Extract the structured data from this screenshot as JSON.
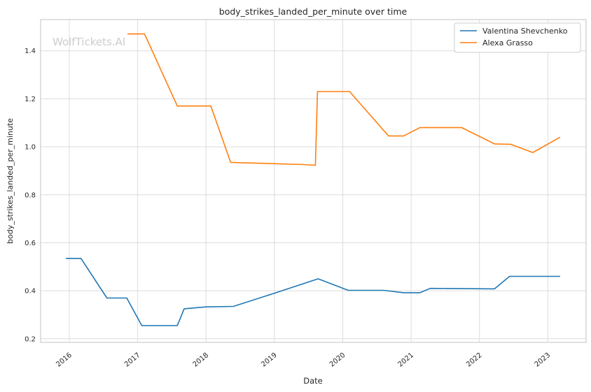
{
  "watermark": "WolfTickets.AI",
  "styles": {
    "background": "#ffffff",
    "grid_color": "#dcdcdc",
    "spine_color": "#cccccc",
    "text_color": "#262626",
    "watermark_color": "#cccccc",
    "legend_border_color": "#cccccc",
    "legend_background": "#ffffff"
  },
  "chart_data": {
    "type": "line",
    "title": "body_strikes_landed_per_minute over time",
    "xlabel": "Date",
    "ylabel": "body_strikes_landed_per_minute",
    "xlim": [
      2015.58,
      2023.56
    ],
    "ylim": [
      0.185,
      1.53
    ],
    "x_ticks": [
      2016,
      2017,
      2018,
      2019,
      2020,
      2021,
      2022,
      2023
    ],
    "y_ticks": [
      0.2,
      0.4,
      0.6,
      0.8,
      1.0,
      1.2,
      1.4
    ],
    "grid": true,
    "legend_position": "upper-right",
    "series": [
      {
        "name": "Valentina Shevchenko",
        "color": "#1f77b4",
        "points": [
          [
            2015.95,
            0.535
          ],
          [
            2016.17,
            0.535
          ],
          [
            2016.55,
            0.37
          ],
          [
            2016.84,
            0.37
          ],
          [
            2017.06,
            0.255
          ],
          [
            2017.58,
            0.255
          ],
          [
            2017.68,
            0.325
          ],
          [
            2018.0,
            0.333
          ],
          [
            2018.4,
            0.335
          ],
          [
            2019.0,
            0.39
          ],
          [
            2019.64,
            0.45
          ],
          [
            2020.08,
            0.402
          ],
          [
            2020.6,
            0.402
          ],
          [
            2020.89,
            0.392
          ],
          [
            2021.13,
            0.392
          ],
          [
            2021.28,
            0.41
          ],
          [
            2022.22,
            0.408
          ],
          [
            2022.44,
            0.46
          ],
          [
            2023.18,
            0.46
          ]
        ]
      },
      {
        "name": "Alexa Grasso",
        "color": "#ff7f0e",
        "points": [
          [
            2016.85,
            1.47
          ],
          [
            2017.1,
            1.47
          ],
          [
            2017.58,
            1.17
          ],
          [
            2018.07,
            1.17
          ],
          [
            2018.36,
            0.935
          ],
          [
            2019.42,
            0.926
          ],
          [
            2019.6,
            0.923
          ],
          [
            2019.63,
            1.23
          ],
          [
            2020.1,
            1.23
          ],
          [
            2020.67,
            1.045
          ],
          [
            2020.89,
            1.045
          ],
          [
            2021.13,
            1.08
          ],
          [
            2021.74,
            1.08
          ],
          [
            2022.22,
            1.012
          ],
          [
            2022.46,
            1.01
          ],
          [
            2022.78,
            0.976
          ],
          [
            2023.18,
            1.04
          ]
        ]
      }
    ]
  }
}
